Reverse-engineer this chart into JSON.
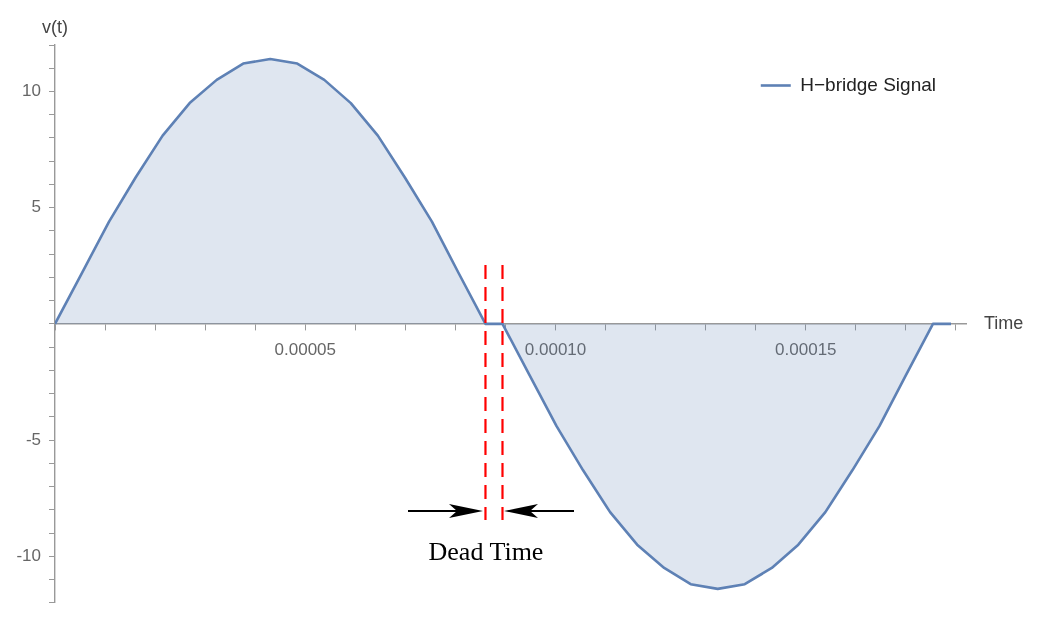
{
  "chart_data": {
    "type": "area",
    "xlabel": "Time",
    "ylabel": "v(t)",
    "legend": "top right",
    "marker": "none",
    "grid": false,
    "xlim": [
      0,
      0.000182
    ],
    "ylim": [
      -12,
      12
    ],
    "xticks": [
      {
        "value": 0,
        "label": null
      },
      {
        "value": 1e-05,
        "label": null
      },
      {
        "value": 2e-05,
        "label": null
      },
      {
        "value": 3e-05,
        "label": null
      },
      {
        "value": 4e-05,
        "label": null
      },
      {
        "value": 5e-05,
        "label": "0.00005"
      },
      {
        "value": 6e-05,
        "label": null
      },
      {
        "value": 7e-05,
        "label": null
      },
      {
        "value": 8e-05,
        "label": null
      },
      {
        "value": 9e-05,
        "label": null
      },
      {
        "value": 0.0001,
        "label": "0.00010"
      },
      {
        "value": 0.00011,
        "label": null
      },
      {
        "value": 0.00012,
        "label": null
      },
      {
        "value": 0.00013,
        "label": null
      },
      {
        "value": 0.00014,
        "label": null
      },
      {
        "value": 0.00015,
        "label": "0.00015"
      },
      {
        "value": 0.00016,
        "label": null
      },
      {
        "value": 0.00017,
        "label": null
      },
      {
        "value": 0.00018,
        "label": null
      }
    ],
    "yticks": [
      {
        "value": -12,
        "label": null
      },
      {
        "value": -11,
        "label": null
      },
      {
        "value": -10,
        "label": "-10"
      },
      {
        "value": -9,
        "label": null
      },
      {
        "value": -8,
        "label": null
      },
      {
        "value": -7,
        "label": null
      },
      {
        "value": -6,
        "label": null
      },
      {
        "value": -5,
        "label": "-5"
      },
      {
        "value": -4,
        "label": null
      },
      {
        "value": -3,
        "label": null
      },
      {
        "value": -2,
        "label": null
      },
      {
        "value": -1,
        "label": null
      },
      {
        "value": 0,
        "label": null
      },
      {
        "value": 1,
        "label": null
      },
      {
        "value": 2,
        "label": null
      },
      {
        "value": 3,
        "label": null
      },
      {
        "value": 4,
        "label": null
      },
      {
        "value": 5,
        "label": "5"
      },
      {
        "value": 6,
        "label": null
      },
      {
        "value": 7,
        "label": null
      },
      {
        "value": 8,
        "label": null
      },
      {
        "value": 9,
        "label": null
      },
      {
        "value": 10,
        "label": "10"
      },
      {
        "value": 11,
        "label": null
      },
      {
        "value": 12,
        "label": null
      }
    ],
    "series": [
      {
        "name": "H−bridge Signal",
        "color": "#5e81b5",
        "x": [
          0,
          5.4e-06,
          1.08e-05,
          1.61e-05,
          2.15e-05,
          2.69e-05,
          3.23e-05,
          3.76e-05,
          4.3e-05,
          4.84e-05,
          5.38e-05,
          5.91e-05,
          6.45e-05,
          6.99e-05,
          7.53e-05,
          8.06e-05,
          8.6e-05,
          8.94e-05,
          9.48e-05,
          0.0001002,
          0.0001055,
          0.0001109,
          0.0001163,
          0.0001217,
          0.000127,
          0.0001324,
          0.0001378,
          0.0001432,
          0.0001485,
          0.0001539,
          0.0001593,
          0.0001647,
          0.00017,
          0.0001754,
          0.000179
        ],
        "values": [
          0,
          2.2,
          4.4,
          6.3,
          8.1,
          9.5,
          10.5,
          11.2,
          11.4,
          11.2,
          10.5,
          9.5,
          8.1,
          6.3,
          4.4,
          2.2,
          0,
          0,
          -2.2,
          -4.4,
          -6.3,
          -8.1,
          -9.5,
          -10.5,
          -11.2,
          -11.4,
          -11.2,
          -10.5,
          -9.5,
          -8.1,
          -6.3,
          -4.4,
          -2.2,
          0,
          0
        ]
      }
    ],
    "ref_lines": [
      {
        "axis": "x",
        "value": 8.6e-05,
        "color": "#ff0000",
        "line_style": "dashed"
      },
      {
        "axis": "x",
        "value": 8.94e-05,
        "color": "#ff0000",
        "line_style": "dashed"
      }
    ],
    "annotations": [
      "Dead Time"
    ]
  }
}
